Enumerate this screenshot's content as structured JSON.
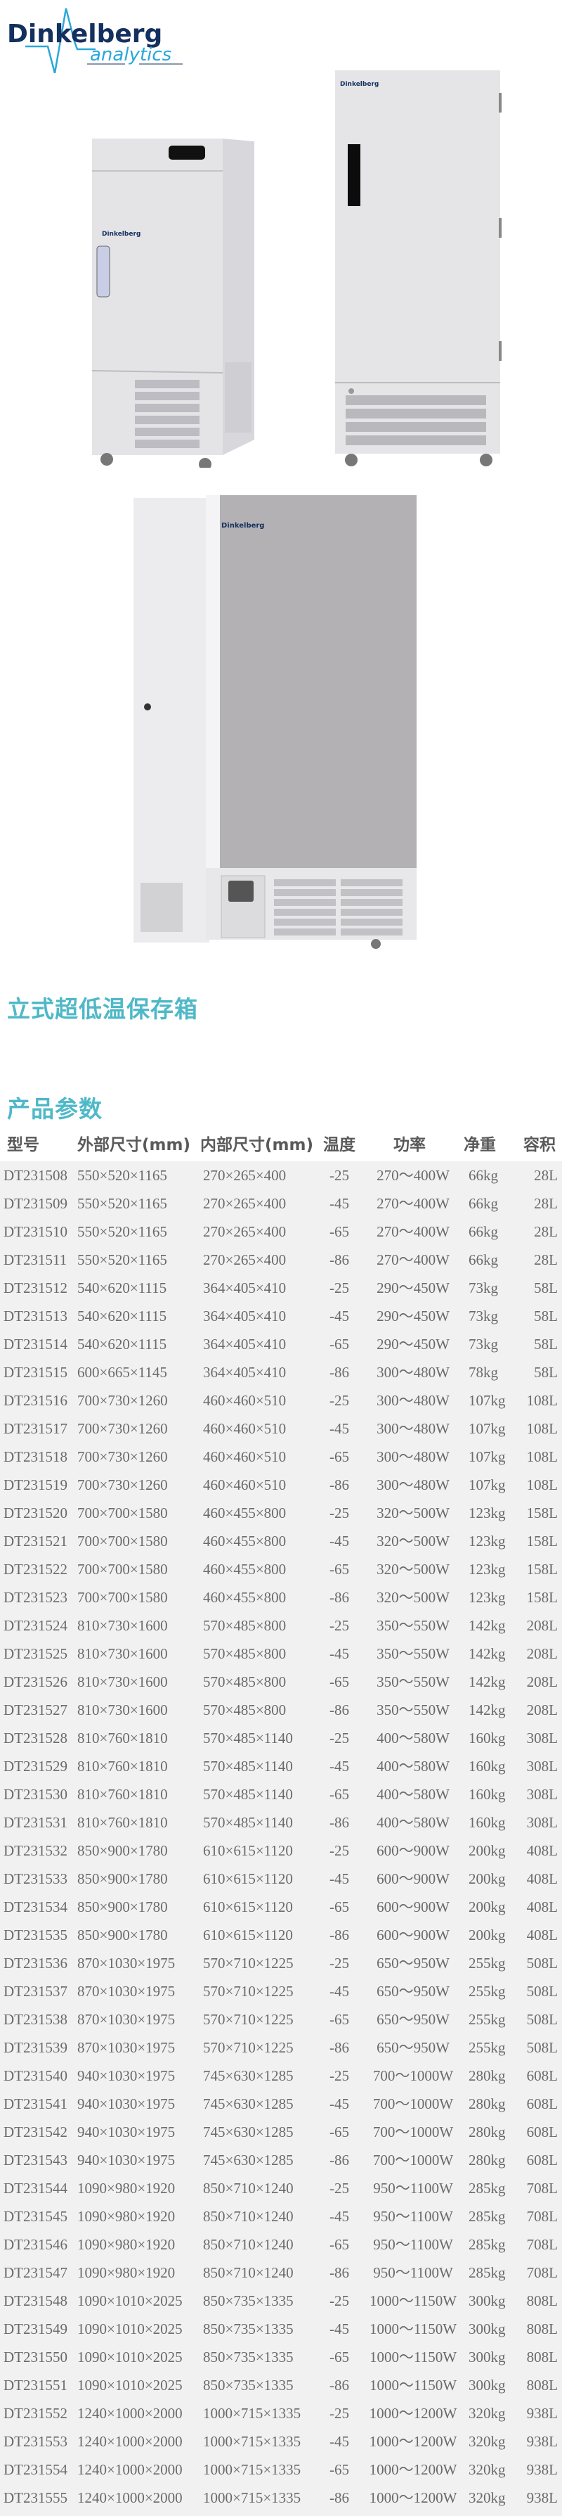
{
  "brand": {
    "name": "Dinkelberg",
    "sub": "analytics",
    "navy": "#14305e",
    "cyan": "#29a8d8"
  },
  "product_title": "立式超低温保存箱",
  "params_title": "产品参数",
  "accent_color": "#4fb8c8",
  "table": {
    "headers": [
      "型号",
      "外部尺寸(mm)",
      "内部尺寸(mm)",
      "温度",
      "功率",
      "净重",
      "容积"
    ],
    "rows": [
      [
        "DT231508",
        "550×520×1165",
        "270×265×400",
        "-25",
        "270～400W",
        "66kg",
        "28L"
      ],
      [
        "DT231509",
        "550×520×1165",
        "270×265×400",
        "-45",
        "270～400W",
        "66kg",
        "28L"
      ],
      [
        "DT231510",
        "550×520×1165",
        "270×265×400",
        "-65",
        "270～400W",
        "66kg",
        "28L"
      ],
      [
        "DT231511",
        "550×520×1165",
        "270×265×400",
        "-86",
        "270～400W",
        "66kg",
        "28L"
      ],
      [
        "DT231512",
        "540×620×1115",
        "364×405×410",
        "-25",
        "290～450W",
        "73kg",
        "58L"
      ],
      [
        "DT231513",
        "540×620×1115",
        "364×405×410",
        "-45",
        "290～450W",
        "73kg",
        "58L"
      ],
      [
        "DT231514",
        "540×620×1115",
        "364×405×410",
        "-65",
        "290～450W",
        "73kg",
        "58L"
      ],
      [
        "DT231515",
        "600×665×1145",
        "364×405×410",
        "-86",
        "300～480W",
        "78kg",
        "58L"
      ],
      [
        "DT231516",
        "700×730×1260",
        "460×460×510",
        "-25",
        "300～480W",
        "107kg",
        "108L"
      ],
      [
        "DT231517",
        "700×730×1260",
        "460×460×510",
        "-45",
        "300～480W",
        "107kg",
        "108L"
      ],
      [
        "DT231518",
        "700×730×1260",
        "460×460×510",
        "-65",
        "300～480W",
        "107kg",
        "108L"
      ],
      [
        "DT231519",
        "700×730×1260",
        "460×460×510",
        "-86",
        "300～480W",
        "107kg",
        "108L"
      ],
      [
        "DT231520",
        "700×700×1580",
        "460×455×800",
        "-25",
        "320～500W",
        "123kg",
        "158L"
      ],
      [
        "DT231521",
        "700×700×1580",
        "460×455×800",
        "-45",
        "320～500W",
        "123kg",
        "158L"
      ],
      [
        "DT231522",
        "700×700×1580",
        "460×455×800",
        "-65",
        "320～500W",
        "123kg",
        "158L"
      ],
      [
        "DT231523",
        "700×700×1580",
        "460×455×800",
        "-86",
        "320～500W",
        "123kg",
        "158L"
      ],
      [
        "DT231524",
        "810×730×1600",
        "570×485×800",
        "-25",
        "350～550W",
        "142kg",
        "208L"
      ],
      [
        "DT231525",
        "810×730×1600",
        "570×485×800",
        "-45",
        "350～550W",
        "142kg",
        "208L"
      ],
      [
        "DT231526",
        "810×730×1600",
        "570×485×800",
        "-65",
        "350～550W",
        "142kg",
        "208L"
      ],
      [
        "DT231527",
        "810×730×1600",
        "570×485×800",
        "-86",
        "350～550W",
        "142kg",
        "208L"
      ],
      [
        "DT231528",
        "810×760×1810",
        "570×485×1140",
        "-25",
        "400～580W",
        "160kg",
        "308L"
      ],
      [
        "DT231529",
        "810×760×1810",
        "570×485×1140",
        "-45",
        "400～580W",
        "160kg",
        "308L"
      ],
      [
        "DT231530",
        "810×760×1810",
        "570×485×1140",
        "-65",
        "400～580W",
        "160kg",
        "308L"
      ],
      [
        "DT231531",
        "810×760×1810",
        "570×485×1140",
        "-86",
        "400～580W",
        "160kg",
        "308L"
      ],
      [
        "DT231532",
        "850×900×1780",
        "610×615×1120",
        "-25",
        "600～900W",
        "200kg",
        "408L"
      ],
      [
        "DT231533",
        "850×900×1780",
        "610×615×1120",
        "-45",
        "600～900W",
        "200kg",
        "408L"
      ],
      [
        "DT231534",
        "850×900×1780",
        "610×615×1120",
        "-65",
        "600～900W",
        "200kg",
        "408L"
      ],
      [
        "DT231535",
        "850×900×1780",
        "610×615×1120",
        "-86",
        "600～900W",
        "200kg",
        "408L"
      ],
      [
        "DT231536",
        "870×1030×1975",
        "570×710×1225",
        "-25",
        "650～950W",
        "255kg",
        "508L"
      ],
      [
        "DT231537",
        "870×1030×1975",
        "570×710×1225",
        "-45",
        "650～950W",
        "255kg",
        "508L"
      ],
      [
        "DT231538",
        "870×1030×1975",
        "570×710×1225",
        "-65",
        "650～950W",
        "255kg",
        "508L"
      ],
      [
        "DT231539",
        "870×1030×1975",
        "570×710×1225",
        "-86",
        "650～950W",
        "255kg",
        "508L"
      ],
      [
        "DT231540",
        "940×1030×1975",
        "745×630×1285",
        "-25",
        "700～1000W",
        "280kg",
        "608L"
      ],
      [
        "DT231541",
        "940×1030×1975",
        "745×630×1285",
        "-45",
        "700～1000W",
        "280kg",
        "608L"
      ],
      [
        "DT231542",
        "940×1030×1975",
        "745×630×1285",
        "-65",
        "700～1000W",
        "280kg",
        "608L"
      ],
      [
        "DT231543",
        "940×1030×1975",
        "745×630×1285",
        "-86",
        "700～1000W",
        "280kg",
        "608L"
      ],
      [
        "DT231544",
        "1090×980×1920",
        "850×710×1240",
        "-25",
        "950～1100W",
        "285kg",
        "708L"
      ],
      [
        "DT231545",
        "1090×980×1920",
        "850×710×1240",
        "-45",
        "950～1100W",
        "285kg",
        "708L"
      ],
      [
        "DT231546",
        "1090×980×1920",
        "850×710×1240",
        "-65",
        "950～1100W",
        "285kg",
        "708L"
      ],
      [
        "DT231547",
        "1090×980×1920",
        "850×710×1240",
        "-86",
        "950～1100W",
        "285kg",
        "708L"
      ],
      [
        "DT231548",
        "1090×1010×2025",
        "850×735×1335",
        "-25",
        "1000～1150W",
        "300kg",
        "808L"
      ],
      [
        "DT231549",
        "1090×1010×2025",
        "850×735×1335",
        "-45",
        "1000～1150W",
        "300kg",
        "808L"
      ],
      [
        "DT231550",
        "1090×1010×2025",
        "850×735×1335",
        "-65",
        "1000～1150W",
        "300kg",
        "808L"
      ],
      [
        "DT231551",
        "1090×1010×2025",
        "850×735×1335",
        "-86",
        "1000～1150W",
        "300kg",
        "808L"
      ],
      [
        "DT231552",
        "1240×1000×2000",
        "1000×715×1335",
        "-25",
        "1000～1200W",
        "320kg",
        "938L"
      ],
      [
        "DT231553",
        "1240×1000×2000",
        "1000×715×1335",
        "-45",
        "1000～1200W",
        "320kg",
        "938L"
      ],
      [
        "DT231554",
        "1240×1000×2000",
        "1000×715×1335",
        "-65",
        "1000～1200W",
        "320kg",
        "938L"
      ],
      [
        "DT231555",
        "1240×1000×2000",
        "1000×715×1335",
        "-86",
        "1000～1200W",
        "320kg",
        "938L"
      ]
    ]
  }
}
